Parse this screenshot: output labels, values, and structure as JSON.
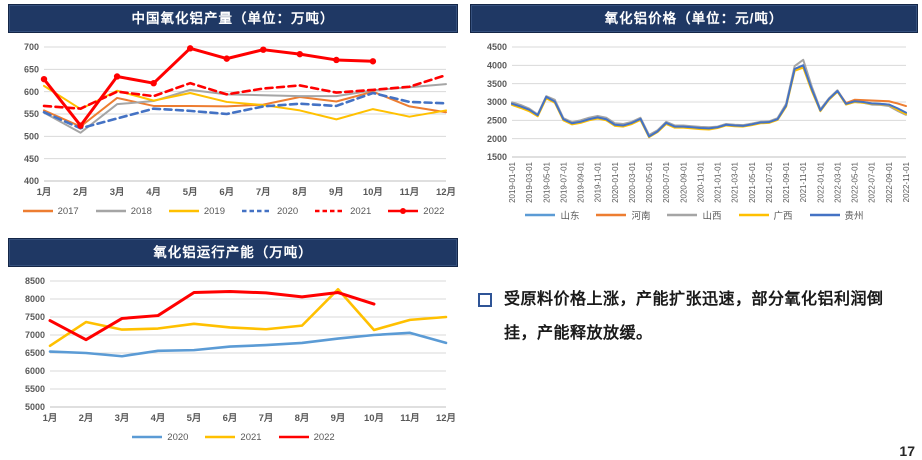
{
  "page": {
    "number": "17"
  },
  "note": {
    "text": "受原料价格上涨，产能扩张迅速，部分氧化铝利润倒挂，产能释放放缓。"
  },
  "colors": {
    "title_bar": "#1f3864",
    "grid": "#d9d9d9",
    "axis_text": "#595959",
    "accent_red": "#ff0000",
    "accent_orange": "#ed7d31",
    "accent_gray": "#a5a5a5",
    "accent_yellow": "#ffc000",
    "accent_blue": "#4472c4",
    "accent_lightblue": "#5b9bd5"
  },
  "chart_data": [
    {
      "type": "line",
      "title": "中国氧化铝产量（单位：万吨）",
      "categories": [
        "1月",
        "2月",
        "3月",
        "4月",
        "5月",
        "6月",
        "7月",
        "8月",
        "9月",
        "10月",
        "11月",
        "12月"
      ],
      "ylim": [
        400,
        700
      ],
      "ystep": 50,
      "grid": true,
      "legend_position": "bottom",
      "series": [
        {
          "name": "2017",
          "color": "#ed7d31",
          "values": [
            558,
            522,
            586,
            568,
            568,
            567,
            571,
            588,
            578,
            600,
            567,
            554
          ]
        },
        {
          "name": "2018",
          "color": "#a5a5a5",
          "values": [
            553,
            508,
            572,
            579,
            604,
            594,
            592,
            590,
            590,
            603,
            610,
            617
          ]
        },
        {
          "name": "2019",
          "color": "#ffc000",
          "values": [
            613,
            561,
            602,
            580,
            597,
            577,
            570,
            558,
            538,
            561,
            544,
            558
          ]
        },
        {
          "name": "2020",
          "color": "#4472c4",
          "dash": true,
          "width": 2.6,
          "values": [
            554,
            518,
            540,
            562,
            557,
            550,
            567,
            573,
            568,
            597,
            577,
            574
          ]
        },
        {
          "name": "2021",
          "color": "#ff0000",
          "dash": true,
          "width": 2.6,
          "values": [
            568,
            562,
            600,
            590,
            619,
            594,
            607,
            614,
            598,
            604,
            611,
            637
          ]
        },
        {
          "name": "2022",
          "color": "#ff0000",
          "marker": true,
          "width": 3,
          "values": [
            628,
            524,
            634,
            619,
            697,
            674,
            694,
            684,
            671,
            668
          ]
        }
      ]
    },
    {
      "type": "line",
      "title": "氧化铝价格（单位：元/吨）",
      "x_monthly_from": "2019-01",
      "xtick_labels": [
        "2019-01-01",
        "2019-03-01",
        "2019-05-01",
        "2019-07-01",
        "2019-09-01",
        "2019-11-01",
        "2020-01-01",
        "2020-03-01",
        "2020-05-01",
        "2020-07-01",
        "2020-09-01",
        "2020-11-01",
        "2021-01-01",
        "2021-03-01",
        "2021-05-01",
        "2021-07-01",
        "2021-09-01",
        "2021-11-01",
        "2022-01-01",
        "2022-03-01",
        "2022-05-01",
        "2022-07-01",
        "2022-09-01",
        "2022-11-01"
      ],
      "xtick_step": 2,
      "rotate_xticks": true,
      "ylim": [
        1500,
        4500
      ],
      "ystep": 500,
      "grid": true,
      "legend_position": "bottom",
      "series": [
        {
          "name": "山东",
          "color": "#5b9bd5",
          "values": [
            2950,
            2880,
            2790,
            2640,
            3140,
            3010,
            2530,
            2420,
            2460,
            2530,
            2580,
            2530,
            2380,
            2360,
            2430,
            2540,
            2060,
            2200,
            2430,
            2330,
            2330,
            2310,
            2290,
            2280,
            2310,
            2380,
            2360,
            2350,
            2390,
            2440,
            2450,
            2530,
            2900,
            3900,
            4000,
            3350,
            2770,
            3080,
            3300,
            2950,
            3020,
            3000,
            2960,
            2950,
            2930,
            2820,
            2700
          ]
        },
        {
          "name": "河南",
          "color": "#ed7d31",
          "values": [
            2960,
            2890,
            2800,
            2650,
            3150,
            3020,
            2540,
            2430,
            2470,
            2540,
            2590,
            2540,
            2390,
            2370,
            2440,
            2550,
            2080,
            2210,
            2440,
            2340,
            2340,
            2320,
            2300,
            2290,
            2320,
            2390,
            2370,
            2360,
            2400,
            2450,
            2460,
            2540,
            2910,
            3890,
            3990,
            3360,
            2780,
            3090,
            3310,
            2970,
            3060,
            3050,
            3040,
            3030,
            3020,
            2960,
            2890
          ]
        },
        {
          "name": "山西",
          "color": "#a5a5a5",
          "values": [
            2990,
            2920,
            2820,
            2660,
            3160,
            3060,
            2560,
            2450,
            2500,
            2570,
            2620,
            2570,
            2420,
            2400,
            2460,
            2570,
            2100,
            2230,
            2460,
            2360,
            2360,
            2340,
            2320,
            2310,
            2330,
            2400,
            2380,
            2370,
            2410,
            2460,
            2470,
            2560,
            2950,
            3980,
            4150,
            3420,
            2800,
            3100,
            3320,
            2940,
            3000,
            2980,
            2930,
            2920,
            2890,
            2760,
            2650
          ]
        },
        {
          "name": "广西",
          "color": "#ffc000",
          "values": [
            2920,
            2840,
            2750,
            2610,
            3100,
            2980,
            2500,
            2390,
            2430,
            2500,
            2550,
            2500,
            2350,
            2330,
            2400,
            2510,
            2040,
            2180,
            2400,
            2300,
            2300,
            2280,
            2260,
            2250,
            2290,
            2360,
            2340,
            2330,
            2370,
            2420,
            2430,
            2510,
            2870,
            3850,
            3940,
            3300,
            2750,
            3060,
            3280,
            2930,
            3000,
            2980,
            2950,
            2940,
            2920,
            2790,
            2670
          ]
        },
        {
          "name": "贵州",
          "color": "#4472c4",
          "values": [
            2950,
            2880,
            2790,
            2640,
            3140,
            3010,
            2530,
            2420,
            2460,
            2530,
            2580,
            2530,
            2380,
            2360,
            2430,
            2540,
            2060,
            2200,
            2430,
            2330,
            2330,
            2310,
            2290,
            2280,
            2310,
            2380,
            2360,
            2350,
            2390,
            2440,
            2450,
            2530,
            2900,
            3900,
            4000,
            3350,
            2770,
            3080,
            3300,
            2950,
            3020,
            3000,
            2960,
            2950,
            2930,
            2830,
            2710
          ]
        }
      ]
    },
    {
      "type": "line",
      "title": "氧化铝运行产能（万吨）",
      "categories": [
        "1月",
        "2月",
        "3月",
        "4月",
        "5月",
        "6月",
        "7月",
        "8月",
        "9月",
        "10月",
        "11月",
        "12月"
      ],
      "ylim": [
        5000,
        8500
      ],
      "ystep": 500,
      "grid": true,
      "legend_position": "bottom",
      "series": [
        {
          "name": "2020",
          "color": "#5b9bd5",
          "width": 2.6,
          "values": [
            6540,
            6500,
            6410,
            6560,
            6580,
            6680,
            6720,
            6780,
            6900,
            7000,
            7060,
            6780
          ]
        },
        {
          "name": "2021",
          "color": "#ffc000",
          "width": 2.6,
          "values": [
            6700,
            7360,
            7150,
            7180,
            7310,
            7210,
            7160,
            7260,
            8270,
            7140,
            7420,
            7500
          ]
        },
        {
          "name": "2022",
          "color": "#ff0000",
          "width": 3,
          "values": [
            7400,
            6870,
            7460,
            7540,
            8180,
            8210,
            8170,
            8060,
            8180,
            7860
          ]
        }
      ]
    }
  ]
}
